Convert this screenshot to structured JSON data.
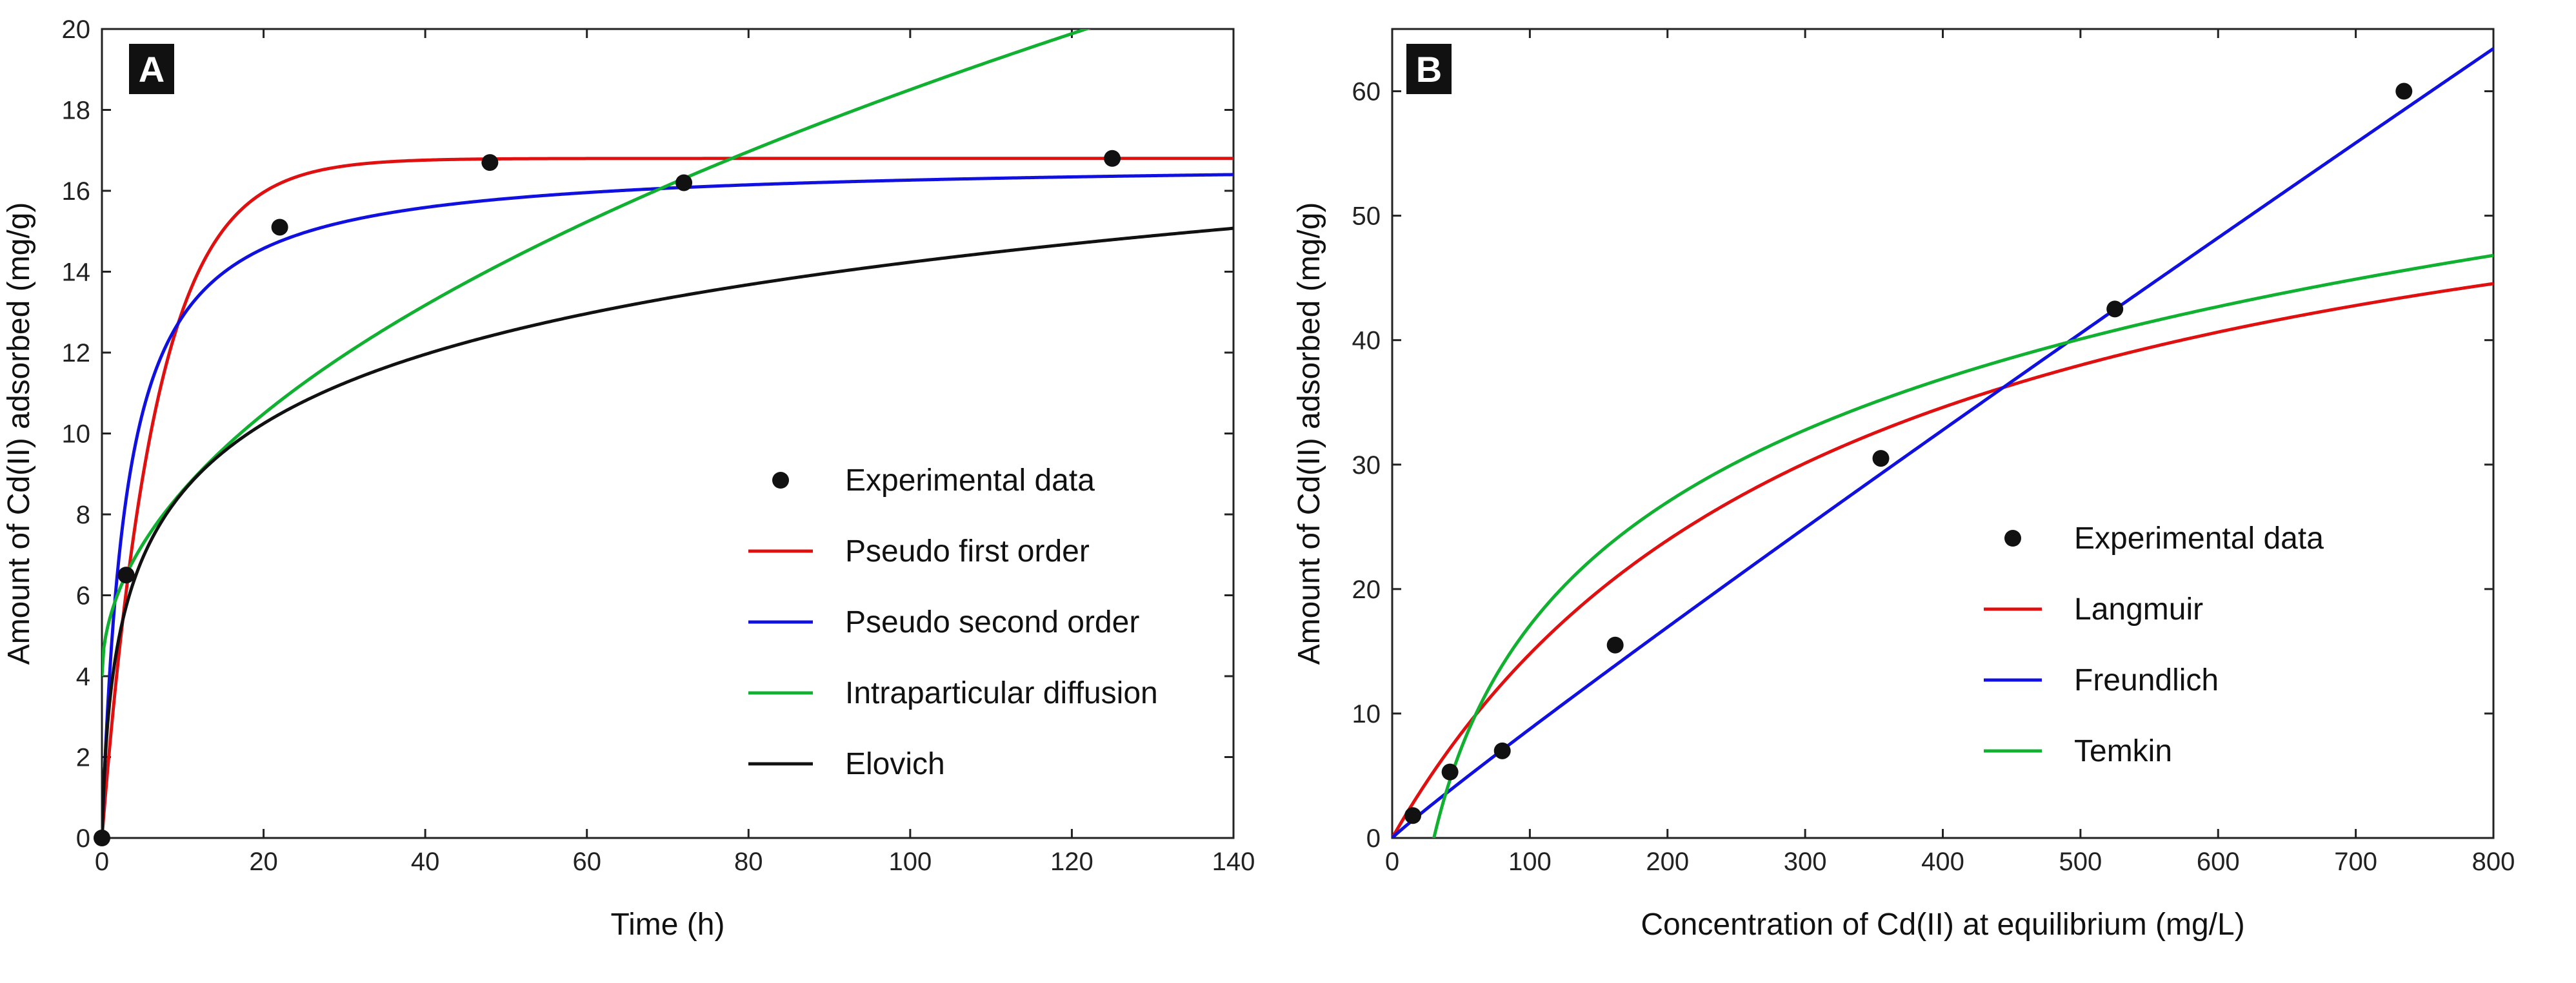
{
  "chart_data": [
    {
      "panel": "A",
      "type": "scatter",
      "title": "",
      "xlabel": "Time (h)",
      "ylabel": "Amount of Cd(II) adsorbed (mg/g)",
      "xlim": [
        0,
        140
      ],
      "ylim": [
        0,
        20
      ],
      "xticks": [
        0,
        20,
        40,
        60,
        80,
        100,
        120,
        140
      ],
      "yticks": [
        0,
        2,
        4,
        6,
        8,
        10,
        12,
        14,
        16,
        18,
        20
      ],
      "grid": false,
      "legend_position": "center-right",
      "points": {
        "name": "Experimental data",
        "x": [
          0,
          3,
          22,
          48,
          72,
          125
        ],
        "y": [
          0,
          6.5,
          15.1,
          16.7,
          16.2,
          16.8
        ]
      },
      "series": [
        {
          "name": "Pseudo first order",
          "color": "#e01010",
          "model": "pfo",
          "params": {
            "qe": 16.8,
            "k1": 0.15
          }
        },
        {
          "name": "Pseudo second order",
          "color": "#1010e0",
          "model": "pso",
          "params": {
            "qe": 16.75,
            "k2": 0.02
          }
        },
        {
          "name": "Intraparticular diffusion",
          "color": "#10b030",
          "model": "ipd",
          "params": {
            "kid": 1.45,
            "c": 4.0
          }
        },
        {
          "name": "Elovich",
          "color": "#111111",
          "model": "elovich",
          "params": {
            "a": 7.4,
            "b": 0.4
          }
        }
      ]
    },
    {
      "panel": "B",
      "type": "scatter",
      "title": "",
      "xlabel": "Concentration of Cd(II) at equilibrium (mg/L)",
      "ylabel": "Amount of Cd(II) adsorbed (mg/g)",
      "xlim": [
        0,
        800
      ],
      "ylim": [
        0,
        65
      ],
      "xticks": [
        0,
        100,
        200,
        300,
        400,
        500,
        600,
        700,
        800
      ],
      "yticks": [
        0,
        10,
        20,
        30,
        40,
        50,
        60
      ],
      "grid": false,
      "legend_position": "center-right",
      "points": {
        "name": "Experimental data",
        "x": [
          15,
          42,
          80,
          162,
          355,
          525,
          735
        ],
        "y": [
          1.8,
          5.3,
          7.0,
          15.5,
          30.5,
          42.5,
          60.0
        ]
      },
      "series": [
        {
          "name": "Langmuir",
          "color": "#e01010",
          "model": "langmuir",
          "params": {
            "qmax": 62.5,
            "KL": 0.0031
          }
        },
        {
          "name": "Freundlich",
          "color": "#1010e0",
          "model": "freundlich",
          "params": {
            "KF": 0.109,
            "n": 1.05
          }
        },
        {
          "name": "Temkin",
          "color": "#10b030",
          "model": "temkin",
          "params": {
            "B": 14.3,
            "AT": 0.033
          }
        }
      ]
    }
  ]
}
